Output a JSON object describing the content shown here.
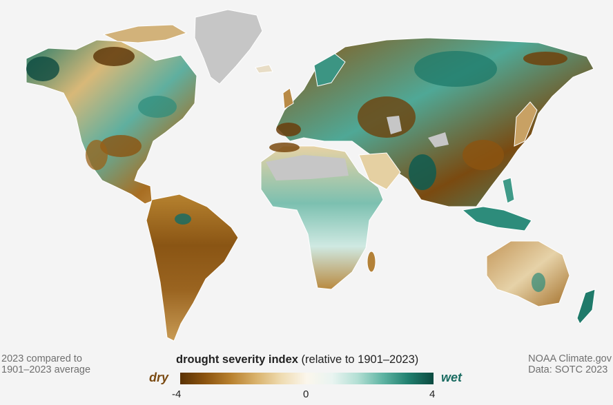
{
  "map": {
    "no_data_color": "#c6c6c6",
    "land_outline_color": "#ffffff",
    "ocean_color": "#f4f4f4"
  },
  "footer": {
    "left_line1": "2023 compared to",
    "left_line2": "1901–2023 average",
    "right_line1": "NOAA Climate.gov",
    "right_line2": "Data: SOTC 2023"
  },
  "legend": {
    "title_bold": "drought severity index",
    "title_rest": " (relative to 1901–2023)",
    "dry_label": "dry",
    "wet_label": "wet",
    "ticks": {
      "min": "-4",
      "mid": "0",
      "max": "4"
    },
    "range": [
      -4,
      4
    ],
    "colors": [
      "#5a3205",
      "#8c5410",
      "#b8812f",
      "#d9b26c",
      "#efdcb2",
      "#fbf6ec",
      "#e9f4f1",
      "#b3dfd4",
      "#5fb4a3",
      "#21806f",
      "#0c4a40"
    ]
  }
}
